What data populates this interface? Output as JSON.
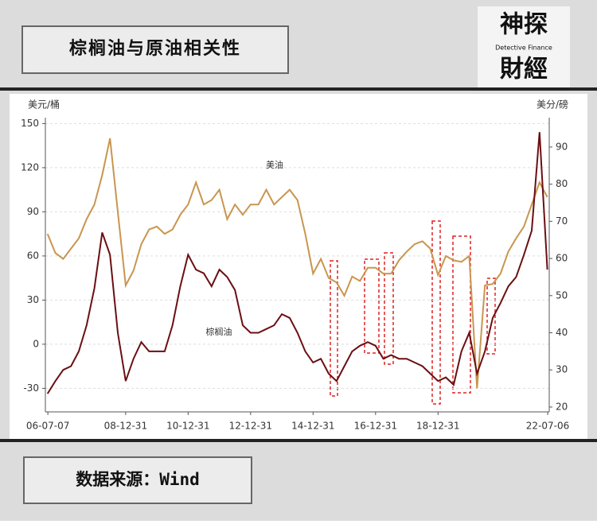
{
  "header": {
    "title": "棕榈油与原油相关性"
  },
  "logo": {
    "top": "神探",
    "middle": "Detective Finance",
    "bottom": "財經"
  },
  "chart_data": {
    "type": "line",
    "y_label": "美元/桶",
    "y2_label": "美分/磅",
    "x": [
      2006.5,
      2006.75,
      2007.0,
      2007.25,
      2007.5,
      2007.75,
      2008.0,
      2008.25,
      2008.5,
      2008.75,
      2009.0,
      2009.25,
      2009.5,
      2009.75,
      2010.0,
      2010.25,
      2010.5,
      2010.75,
      2011.0,
      2011.25,
      2011.5,
      2011.75,
      2012.0,
      2012.25,
      2012.5,
      2012.75,
      2013.0,
      2013.25,
      2013.5,
      2013.75,
      2014.0,
      2014.25,
      2014.5,
      2014.75,
      2015.0,
      2015.25,
      2015.5,
      2015.75,
      2016.0,
      2016.25,
      2016.5,
      2016.75,
      2017.0,
      2017.25,
      2017.5,
      2017.75,
      2018.0,
      2018.25,
      2018.5,
      2018.75,
      2019.0,
      2019.25,
      2019.5,
      2019.75,
      2020.0,
      2020.25,
      2020.5,
      2020.75,
      2021.0,
      2021.25,
      2021.5,
      2021.75,
      2022.0,
      2022.25,
      2022.5
    ],
    "series": [
      {
        "name": "美油",
        "color": "#c8964f",
        "axis": "y",
        "values": [
          75,
          62,
          58,
          65,
          72,
          85,
          95,
          115,
          140,
          90,
          40,
          50,
          68,
          78,
          80,
          75,
          78,
          88,
          95,
          110,
          95,
          98,
          105,
          85,
          95,
          88,
          95,
          95,
          105,
          95,
          100,
          105,
          98,
          75,
          48,
          58,
          45,
          42,
          33,
          46,
          43,
          52,
          52,
          48,
          48,
          57,
          63,
          68,
          70,
          65,
          47,
          60,
          57,
          56,
          60,
          -30,
          40,
          41,
          48,
          63,
          72,
          80,
          95,
          110,
          100
        ]
      },
      {
        "name": "棕榈油",
        "color": "#6b0f12",
        "axis": "y2",
        "values": [
          23.6,
          27,
          30,
          31,
          35,
          42,
          52,
          67,
          61,
          40,
          27,
          33,
          37.5,
          35,
          35,
          35,
          42,
          52.5,
          61,
          57,
          56,
          52.5,
          57,
          55,
          51.5,
          42,
          40,
          40,
          41,
          42,
          45,
          44,
          40,
          35,
          32,
          33,
          29,
          27,
          31,
          35,
          36.5,
          37.5,
          36.5,
          33,
          34,
          33,
          33,
          32,
          31,
          29,
          27,
          28,
          26,
          35,
          40,
          29,
          35,
          44,
          48,
          52.5,
          55,
          61,
          67.5,
          94,
          57
        ]
      }
    ],
    "xlim": [
      2006.43,
      2022.56
    ],
    "ylim": [
      -46,
      154
    ],
    "y2lim": [
      18.7,
      97.9
    ],
    "xticks": [
      {
        "value": 2006.51,
        "label": "06-07-07"
      },
      {
        "value": 2009.0,
        "label": "08-12-31"
      },
      {
        "value": 2011.0,
        "label": "10-12-31"
      },
      {
        "value": 2013.0,
        "label": "12-12-31"
      },
      {
        "value": 2015.0,
        "label": "14-12-31"
      },
      {
        "value": 2017.0,
        "label": "16-12-31"
      },
      {
        "value": 2019.0,
        "label": "18-12-31"
      },
      {
        "value": 2022.51,
        "label": "22-07-06"
      }
    ],
    "yticks": [
      -30,
      0,
      30,
      60,
      90,
      120,
      150
    ],
    "y2ticks": [
      20,
      30,
      40,
      50,
      60,
      70,
      80,
      90
    ],
    "grid": true
  },
  "footer": {
    "source": "数据来源：Wind"
  }
}
